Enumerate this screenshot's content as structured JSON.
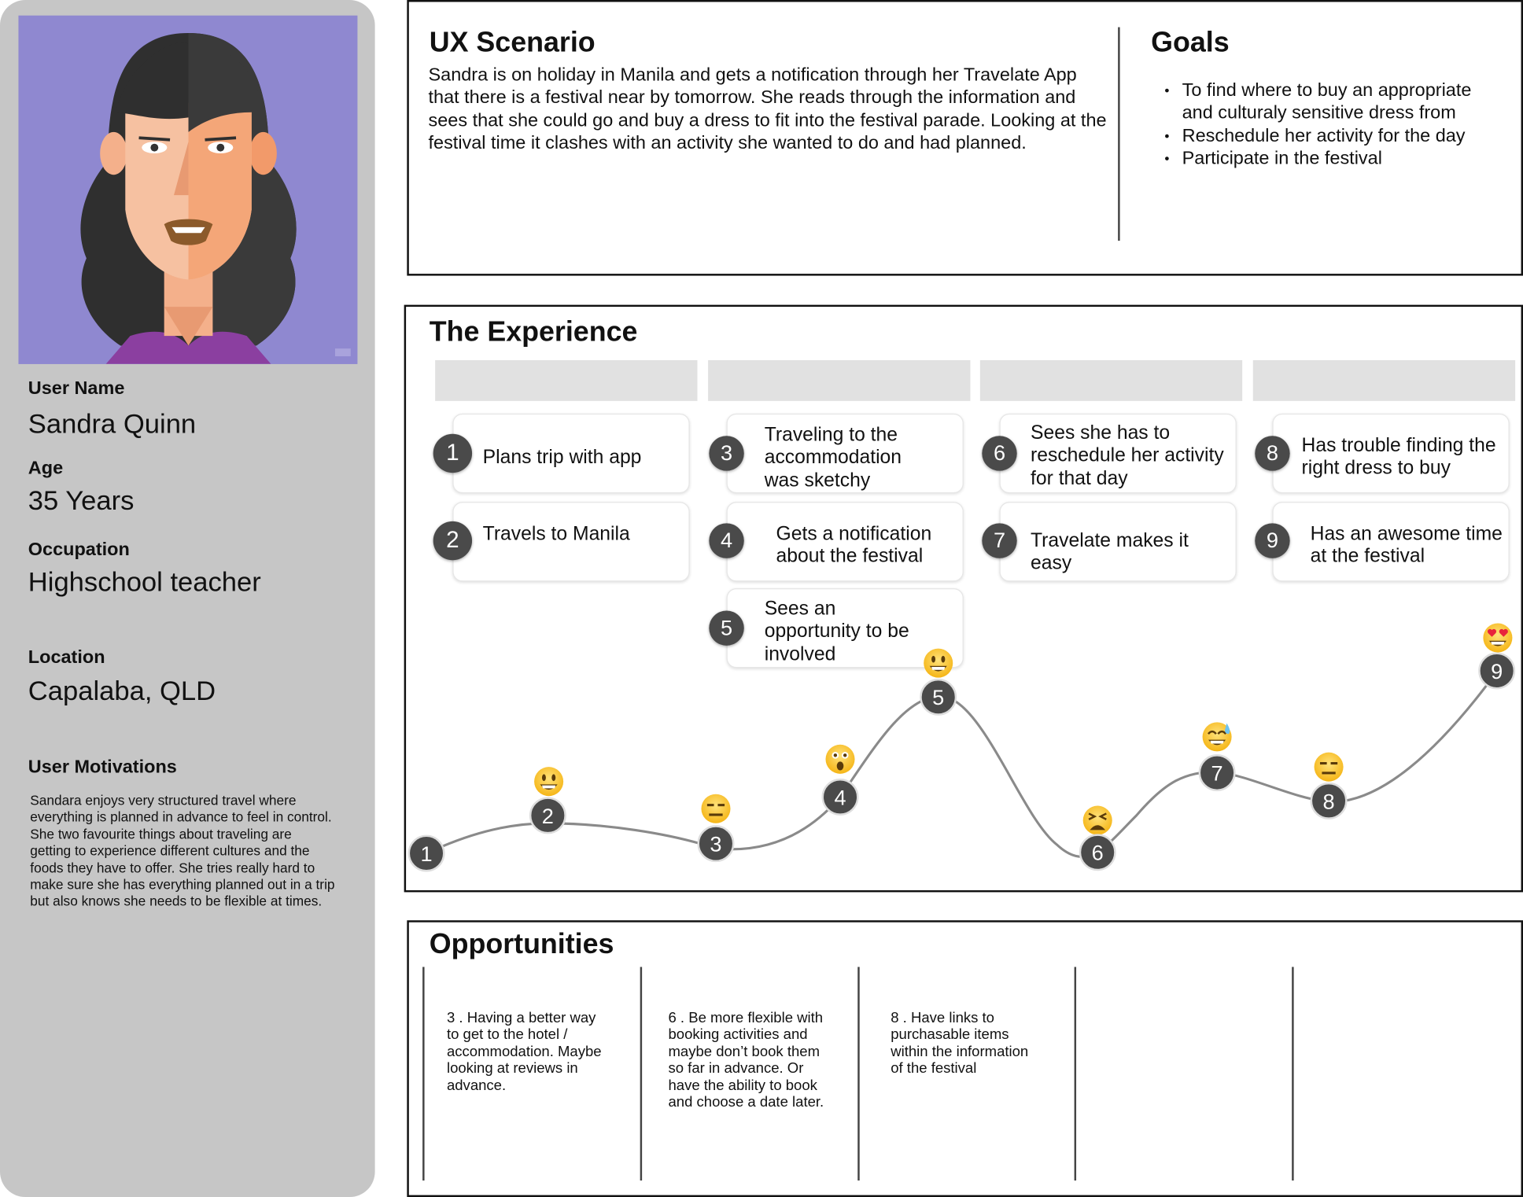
{
  "persona": {
    "user_name_label": "User Name",
    "user_name": "Sandra Quinn",
    "age_label": "Age",
    "age": "35 Years",
    "occupation_label": "Occupation",
    "occupation": "Highschool teacher",
    "location_label": "Location",
    "location": "Capalaba, QLD",
    "motivations_label": "User Motivations",
    "motivations": "Sandara enjoys very structured travel where everything is planned in advance to feel in control. She two favourite things about traveling are getting to experience different cultures and the foods they have to offer. She tries really hard to make sure she has everything planned out in a trip but also knows she needs to be flexible at times."
  },
  "scenario": {
    "title": "UX Scenario",
    "text": "Sandra is on holiday in Manila and gets a notification through her Travelate App that there is a festival near by tomorrow. She reads through the information and sees that she could go and buy a dress to fit into the festival parade. Looking at the festival time it clashes with an activity she wanted to do and had planned."
  },
  "goals": {
    "title": "Goals",
    "items": [
      "To find where to buy  an appropriate and culturaly sensitive dress from",
      "Reschedule her activity for the day",
      "Participate in the festival"
    ]
  },
  "experience": {
    "title": "The Experience",
    "steps": [
      {
        "num": "1",
        "text": "Plans trip with app"
      },
      {
        "num": "2",
        "text": "Travels to Manila"
      },
      {
        "num": "3",
        "text": "Traveling to the accommodation was sketchy"
      },
      {
        "num": "4",
        "text": "Gets a notification about the festival"
      },
      {
        "num": "5",
        "text": "Sees an opportunity to be involved"
      },
      {
        "num": "6",
        "text": "Sees she has to reschedule her activity for that day"
      },
      {
        "num": "7",
        "text": "Travelate makes it easy"
      },
      {
        "num": "8",
        "text": "Has trouble finding the right dress to buy"
      },
      {
        "num": "9",
        "text": "Has an awesome time at the festival"
      }
    ],
    "journey": [
      {
        "num": "1",
        "emotion": "none"
      },
      {
        "num": "2",
        "emotion": "grinning"
      },
      {
        "num": "3",
        "emotion": "expressionless"
      },
      {
        "num": "4",
        "emotion": "astonished"
      },
      {
        "num": "5",
        "emotion": "grinning"
      },
      {
        "num": "6",
        "emotion": "tired"
      },
      {
        "num": "7",
        "emotion": "sweat-smile"
      },
      {
        "num": "8",
        "emotion": "expressionless"
      },
      {
        "num": "9",
        "emotion": "heart-eyes"
      }
    ]
  },
  "opportunities": {
    "title": "Opportunities",
    "items": [
      "3 . Having a better way to get to the hotel / accommodation. Maybe looking at reviews in advance.",
      "6 . Be more flexible with booking activities and maybe don’t book them so far in advance. Or have the ability to book and choose a date later.",
      "8 . Have links to purchasable items within the information of the festival"
    ]
  },
  "colors": {
    "sidebar_bg": "#c6c6c6",
    "avatar_bg": "#8f88d0",
    "badge": "#4a4a4a",
    "phase_bar": "#e1e1e1"
  }
}
